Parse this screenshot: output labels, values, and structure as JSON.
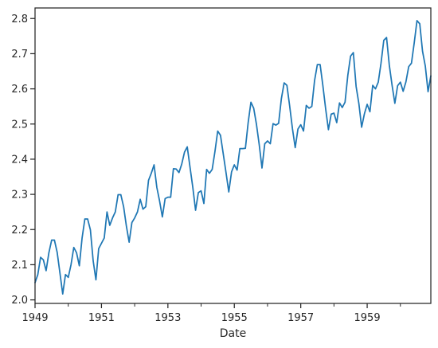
{
  "chart_data": {
    "type": "line",
    "title": "",
    "xlabel": "Date",
    "ylabel": "",
    "grid": false,
    "legend": "none",
    "x_date_range": [
      "1949-01",
      "1960-12"
    ],
    "xlim": [
      "1949-01",
      "1960-12"
    ],
    "ylim": [
      1.99,
      2.83
    ],
    "x_tick_labels": [
      "1949",
      "1951",
      "1953",
      "1955",
      "1957",
      "1959"
    ],
    "x_major_ticks": [
      "1949-01",
      "1951-01",
      "1953-01",
      "1955-01",
      "1957-01",
      "1959-01"
    ],
    "x_minor_ticks": [
      "1950-01",
      "1952-01",
      "1954-01",
      "1956-01",
      "1958-01",
      "1960-01"
    ],
    "y_ticks": [
      2.0,
      2.1,
      2.2,
      2.3,
      2.4,
      2.5,
      2.6,
      2.7,
      2.8
    ],
    "y_tick_labels": [
      "2.0",
      "2.1",
      "2.2",
      "2.3",
      "2.4",
      "2.5",
      "2.6",
      "2.7",
      "2.8"
    ],
    "series": [
      {
        "color": "#1f77b4",
        "x": [
          "1949-01",
          "1949-02",
          "1949-03",
          "1949-04",
          "1949-05",
          "1949-06",
          "1949-07",
          "1949-08",
          "1949-09",
          "1949-10",
          "1949-11",
          "1949-12",
          "1950-01",
          "1950-02",
          "1950-03",
          "1950-04",
          "1950-05",
          "1950-06",
          "1950-07",
          "1950-08",
          "1950-09",
          "1950-10",
          "1950-11",
          "1950-12",
          "1951-01",
          "1951-02",
          "1951-03",
          "1951-04",
          "1951-05",
          "1951-06",
          "1951-07",
          "1951-08",
          "1951-09",
          "1951-10",
          "1951-11",
          "1951-12",
          "1952-01",
          "1952-02",
          "1952-03",
          "1952-04",
          "1952-05",
          "1952-06",
          "1952-07",
          "1952-08",
          "1952-09",
          "1952-10",
          "1952-11",
          "1952-12",
          "1953-01",
          "1953-02",
          "1953-03",
          "1953-04",
          "1953-05",
          "1953-06",
          "1953-07",
          "1953-08",
          "1953-09",
          "1953-10",
          "1953-11",
          "1953-12",
          "1954-01",
          "1954-02",
          "1954-03",
          "1954-04",
          "1954-05",
          "1954-06",
          "1954-07",
          "1954-08",
          "1954-09",
          "1954-10",
          "1954-11",
          "1954-12",
          "1955-01",
          "1955-02",
          "1955-03",
          "1955-04",
          "1955-05",
          "1955-06",
          "1955-07",
          "1955-08",
          "1955-09",
          "1955-10",
          "1955-11",
          "1955-12",
          "1956-01",
          "1956-02",
          "1956-03",
          "1956-04",
          "1956-05",
          "1956-06",
          "1956-07",
          "1956-08",
          "1956-09",
          "1956-10",
          "1956-11",
          "1956-12",
          "1957-01",
          "1957-02",
          "1957-03",
          "1957-04",
          "1957-05",
          "1957-06",
          "1957-07",
          "1957-08",
          "1957-09",
          "1957-10",
          "1957-11",
          "1957-12",
          "1958-01",
          "1958-02",
          "1958-03",
          "1958-04",
          "1958-05",
          "1958-06",
          "1958-07",
          "1958-08",
          "1958-09",
          "1958-10",
          "1958-11",
          "1958-12",
          "1959-01",
          "1959-02",
          "1959-03",
          "1959-04",
          "1959-05",
          "1959-06",
          "1959-07",
          "1959-08",
          "1959-09",
          "1959-10",
          "1959-11",
          "1959-12",
          "1960-01",
          "1960-02",
          "1960-03",
          "1960-04",
          "1960-05",
          "1960-06",
          "1960-07",
          "1960-08",
          "1960-09",
          "1960-10",
          "1960-11",
          "1960-12"
        ],
        "y": [
          2.049,
          2.072,
          2.121,
          2.114,
          2.083,
          2.134,
          2.17,
          2.17,
          2.135,
          2.076,
          2.017,
          2.072,
          2.064,
          2.1,
          2.149,
          2.134,
          2.097,
          2.176,
          2.23,
          2.23,
          2.199,
          2.111,
          2.057,
          2.146,
          2.161,
          2.176,
          2.25,
          2.212,
          2.233,
          2.25,
          2.299,
          2.299,
          2.265,
          2.21,
          2.164,
          2.22,
          2.233,
          2.25,
          2.286,
          2.258,
          2.265,
          2.34,
          2.36,
          2.384,
          2.32,
          2.281,
          2.236,
          2.288,
          2.292,
          2.292,
          2.373,
          2.372,
          2.362,
          2.386,
          2.42,
          2.435,
          2.377,
          2.32,
          2.255,
          2.305,
          2.31,
          2.274,
          2.371,
          2.36,
          2.371,
          2.422,
          2.48,
          2.468,
          2.415,
          2.362,
          2.307,
          2.364,
          2.384,
          2.369,
          2.43,
          2.43,
          2.431,
          2.504,
          2.562,
          2.545,
          2.499,
          2.441,
          2.375,
          2.444,
          2.452,
          2.444,
          2.501,
          2.497,
          2.502,
          2.572,
          2.617,
          2.61,
          2.551,
          2.487,
          2.433,
          2.486,
          2.498,
          2.48,
          2.553,
          2.545,
          2.55,
          2.624,
          2.669,
          2.669,
          2.609,
          2.543,
          2.484,
          2.528,
          2.531,
          2.504,
          2.56,
          2.547,
          2.562,
          2.638,
          2.693,
          2.703,
          2.607,
          2.558,
          2.491,
          2.529,
          2.556,
          2.535,
          2.61,
          2.6,
          2.619,
          2.673,
          2.738,
          2.746,
          2.667,
          2.61,
          2.559,
          2.609,
          2.619,
          2.593,
          2.62,
          2.663,
          2.673,
          2.731,
          2.794,
          2.785,
          2.707,
          2.665,
          2.592,
          2.637
        ]
      }
    ]
  }
}
